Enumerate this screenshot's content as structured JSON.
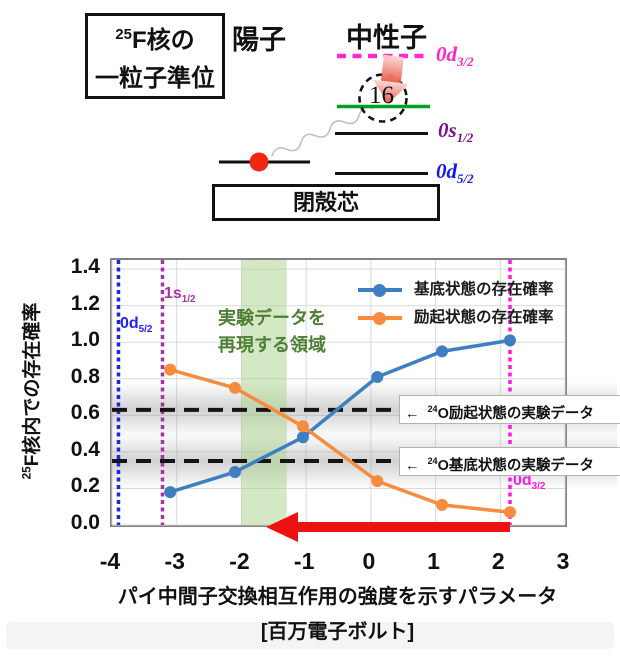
{
  "diagram": {
    "title_line1_sup": "25",
    "title_line1_text": "F核の",
    "title_line2_text": "一粒子準位",
    "proton_label": "陽子",
    "neutron_label": "中性子",
    "occupancy_number": "16",
    "core_label": "閉殻芯",
    "levels": {
      "d32": {
        "main": "0d",
        "sub": "3/2",
        "color": "#ff22cc"
      },
      "s12": {
        "main": "0s",
        "sub": "1/2",
        "color": "#7a0f8e"
      },
      "d52": {
        "main": "0d",
        "sub": "5/2",
        "color": "#1717e8"
      }
    }
  },
  "chart_data": {
    "type": "line",
    "x": [
      -3.1,
      -2.1,
      -1.05,
      0.1,
      1.1,
      2.15
    ],
    "series": [
      {
        "name": "基底状態の存在確率",
        "color": "#3e7fc1",
        "values": [
          0.18,
          0.29,
          0.48,
          0.81,
          0.95,
          1.01
        ]
      },
      {
        "name": "励起状態の存在確率",
        "color": "#f68c3e",
        "values": [
          0.85,
          0.75,
          0.54,
          0.24,
          0.11,
          0.07
        ]
      }
    ],
    "xlim": [
      -4,
      3
    ],
    "ylim": [
      0,
      1.45
    ],
    "grid": true,
    "legend_position": "top-right",
    "xticks": [
      "-4",
      "-3",
      "-2",
      "-1",
      "0",
      "1",
      "2",
      "3"
    ],
    "yticks": [
      "0.0",
      "0.2",
      "0.4",
      "0.6",
      "0.8",
      "1.0",
      "1.2",
      "1.4"
    ],
    "ylabel_sup": "25",
    "ylabel_text": "F核内での存在確率",
    "xlabel_line1": "パイ中間子交換相互作用の強度を示すパラメータ",
    "xlabel_line2": "[百万電子ボルト]",
    "hlines": [
      {
        "y": 0.63,
        "prefix": "←",
        "sup": "24",
        "text": "O励起状態の実験データ"
      },
      {
        "y": 0.35,
        "prefix": "←",
        "sup": "24",
        "text": "O基底状態の実験データ"
      }
    ],
    "vlines": [
      {
        "x": -3.9,
        "color": "#2222ee",
        "label": {
          "main": "0d",
          "sub": "5/2"
        }
      },
      {
        "x": -3.22,
        "color": "#a832a8",
        "label": {
          "main": "1s",
          "sub": "1/2"
        }
      },
      {
        "x": 2.15,
        "color": "#ff17e3",
        "label": {
          "main": "0d",
          "sub": "3/2"
        }
      }
    ],
    "green_band": {
      "x0": -2.0,
      "x1": -1.3,
      "fill": "#a9d18e",
      "label_line1": "実験データを",
      "label_line2": "再現する領域"
    },
    "red_arrow": {
      "x_from": 2.15,
      "x_to": -1.62,
      "color": "#ee1111"
    }
  }
}
